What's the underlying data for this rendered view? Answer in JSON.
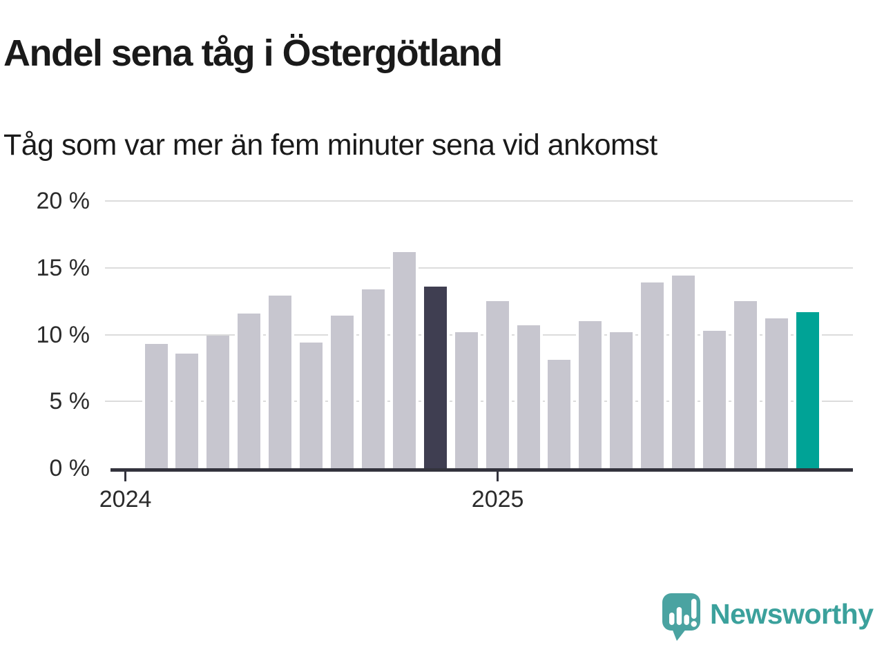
{
  "title": "Andel sena tåg i Östergötland",
  "subtitle": "Tåg som var mer än fem minuter sena vid ankomst",
  "brand": {
    "name": "Newsworthy"
  },
  "chart_data": {
    "type": "bar",
    "unit": "%",
    "title": "Andel sena tåg i Östergötland",
    "subtitle": "Tåg som var mer än fem minuter sena vid ankomst",
    "values": [
      9.3,
      8.6,
      9.9,
      11.6,
      12.9,
      9.4,
      11.4,
      13.4,
      16.2,
      13.6,
      10.2,
      12.5,
      10.7,
      8.1,
      11.0,
      10.2,
      13.9,
      14.4,
      10.3,
      12.5,
      11.2,
      11.7
    ],
    "highlight_dark_index": 9,
    "highlight_accent_index": 21,
    "ylim": [
      0,
      20
    ],
    "grid": true,
    "legend": false,
    "y_ticks": [
      {
        "value": 0,
        "label": "0 %"
      },
      {
        "value": 5,
        "label": "5 %"
      },
      {
        "value": 10,
        "label": "10 %"
      },
      {
        "value": 15,
        "label": "15 %"
      },
      {
        "value": 20,
        "label": "20 %"
      }
    ],
    "x_ticks": [
      {
        "label": "2024",
        "bar_offset": -1
      },
      {
        "label": "2025",
        "bar_offset": 11
      }
    ],
    "colors": {
      "bar": "#c7c6cf",
      "dark_bar": "#3f3e51",
      "accent_bar": "#00a396",
      "grid": "#dcdcdc",
      "axis": "#33333d",
      "text": "#1a1a1a",
      "brand_text": "#3ba19c",
      "brand_bubble": "#4aa3a1"
    }
  }
}
